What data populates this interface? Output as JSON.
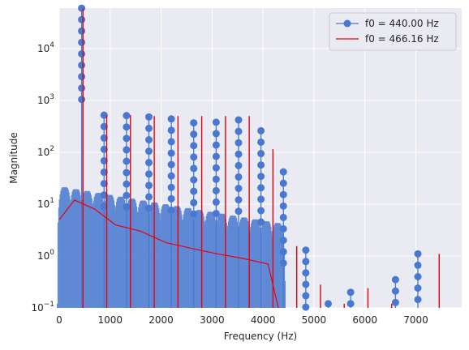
{
  "chart_data": {
    "type": "line",
    "xlabel": "Frequency (Hz)",
    "ylabel": "Magnitude",
    "xlim": [
      0,
      7900
    ],
    "ylim_log10": [
      -1,
      4.78
    ],
    "y_scale": "log",
    "grid": true,
    "legend_position": "top-right",
    "x_ticks": [
      {
        "value": 0,
        "label": "0"
      },
      {
        "value": 1000,
        "label": "1000"
      },
      {
        "value": 2000,
        "label": "2000"
      },
      {
        "value": 3000,
        "label": "3000"
      },
      {
        "value": 4000,
        "label": "4000"
      },
      {
        "value": 5000,
        "label": "5000"
      },
      {
        "value": 6000,
        "label": "6000"
      },
      {
        "value": 7000,
        "label": "7000"
      }
    ],
    "y_ticks": [
      {
        "value": 0.1,
        "base": "10",
        "exp": "−1"
      },
      {
        "value": 1,
        "base": "10",
        "exp": "0"
      },
      {
        "value": 10,
        "base": "10",
        "exp": "1"
      },
      {
        "value": 100,
        "base": "10",
        "exp": "2"
      },
      {
        "value": 1000,
        "base": "10",
        "exp": "3"
      },
      {
        "value": 10000,
        "base": "10",
        "exp": "4"
      }
    ],
    "series": [
      {
        "name": "f0 = 440.00 Hz",
        "color": "#4878d0",
        "style": "stem-markers",
        "peaks": [
          {
            "x": 440,
            "y": 60000
          },
          {
            "x": 880,
            "y": 520
          },
          {
            "x": 1320,
            "y": 510
          },
          {
            "x": 1760,
            "y": 480
          },
          {
            "x": 2200,
            "y": 440
          },
          {
            "x": 2640,
            "y": 370
          },
          {
            "x": 3080,
            "y": 380
          },
          {
            "x": 3520,
            "y": 420
          },
          {
            "x": 3960,
            "y": 260
          },
          {
            "x": 4400,
            "y": 42
          },
          {
            "x": 4840,
            "y": 1.3
          },
          {
            "x": 5280,
            "y": 0.12
          },
          {
            "x": 5720,
            "y": 0.2
          },
          {
            "x": 6600,
            "y": 0.35
          },
          {
            "x": 7040,
            "y": 1.1
          }
        ],
        "lobe_baseline": 22
      },
      {
        "name": "f0 = 466.16 Hz",
        "color": "#e8000b",
        "style": "line",
        "peaks": [
          {
            "x": 466,
            "y": 60000
          },
          {
            "x": 932,
            "y": 520
          },
          {
            "x": 1398,
            "y": 520
          },
          {
            "x": 1865,
            "y": 500
          },
          {
            "x": 2331,
            "y": 500
          },
          {
            "x": 2797,
            "y": 500
          },
          {
            "x": 3263,
            "y": 500
          },
          {
            "x": 3729,
            "y": 500
          },
          {
            "x": 4195,
            "y": 115
          },
          {
            "x": 4662,
            "y": 1.55
          },
          {
            "x": 5128,
            "y": 0.28
          },
          {
            "x": 5594,
            "y": 0.12
          },
          {
            "x": 6060,
            "y": 0.24
          },
          {
            "x": 6526,
            "y": 0.12
          },
          {
            "x": 7458,
            "y": 1.1
          }
        ],
        "floor": [
          {
            "x": 0,
            "y": 5
          },
          {
            "x": 300,
            "y": 12
          },
          {
            "x": 700,
            "y": 8
          },
          {
            "x": 1100,
            "y": 4
          },
          {
            "x": 1600,
            "y": 3
          },
          {
            "x": 2100,
            "y": 1.8
          },
          {
            "x": 2600,
            "y": 1.4
          },
          {
            "x": 3100,
            "y": 1.1
          },
          {
            "x": 3600,
            "y": 0.9
          },
          {
            "x": 4100,
            "y": 0.7
          },
          {
            "x": 4300,
            "y": 0.1
          }
        ]
      }
    ]
  }
}
